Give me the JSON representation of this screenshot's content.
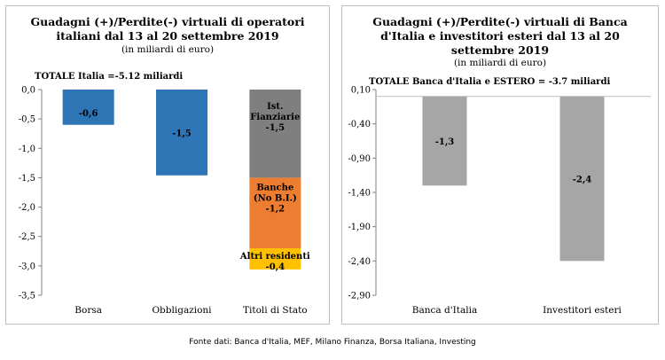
{
  "chart_data": [
    {
      "type": "bar",
      "stacked": true,
      "title": "Guadagni (+)/Perdite(-) virtuali di operatori italiani dal 13 al 20 settembre 2019",
      "title_lines": [
        "Guadagni (+)/Perdite(-) virtuali di operatori",
        "italiani dal 13 al 20 settembre 2019"
      ],
      "subtitle": "(in miliardi di euro)",
      "annotation": "TOTALE Italia =-5.12 miliardi",
      "categories": [
        "Borsa",
        "Obbligazioni",
        "Titoli di Stato"
      ],
      "ylim": [
        -3.5,
        0
      ],
      "yticks": [
        "0,0",
        "-0,5",
        "-1,0",
        "-1,5",
        "-2,0",
        "-2,5",
        "-3,0",
        "-3,5"
      ],
      "grid": false,
      "segments": [
        {
          "category": "Borsa",
          "value": -0.6,
          "label": "-0,6",
          "color": "#2e75b6"
        },
        {
          "category": "Obbligazioni",
          "value": -1.46,
          "label": "-1,5",
          "color": "#2e75b6"
        },
        {
          "category": "Titoli di Stato",
          "value": -1.5,
          "label": "Ist. Fianziarie -1,5",
          "label_lines": [
            "Ist.",
            "Fianziarie",
            "-1,5"
          ],
          "color": "#7f7f7f"
        },
        {
          "category": "Titoli di Stato",
          "value": -1.2,
          "label": "Banche (No B.I.) -1,2",
          "label_lines": [
            "Banche",
            "(No B.I.)",
            "-1,2"
          ],
          "color": "#ed7d31"
        },
        {
          "category": "Titoli di Stato",
          "value": -0.36,
          "label": "Altri residenti -0,4",
          "label_lines": [
            "Altri residenti",
            "-0,4"
          ],
          "color": "#ffc000"
        }
      ]
    },
    {
      "type": "bar",
      "title": "Guadagni (+)/Perdite(-) virtuali di Banca d'Italia e investitori esteri dal 13 al 20 settembre 2019",
      "title_lines": [
        "Guadagni (+)/Perdite(-) virtuali di Banca",
        "d'Italia e investitori esteri dal 13 al 20",
        "settembre 2019"
      ],
      "subtitle": "(in miliardi di euro)",
      "annotation": "TOTALE Banca d'Italia e ESTERO = -3.7 miliardi",
      "categories": [
        "Banca d'Italia",
        "Investitori esteri"
      ],
      "ylim": [
        -2.9,
        0.1
      ],
      "yticks": [
        "0,10",
        "-0,40",
        "-0,90",
        "-1,40",
        "-1,90",
        "-2,40",
        "-2,90"
      ],
      "grid": false,
      "values": [
        -1.3,
        -2.4
      ],
      "value_labels": [
        "-1,3",
        "-2,4"
      ],
      "color": "#a6a6a6"
    }
  ],
  "source": "Fonte dati: Banca d'Italia, MEF, Milano Finanza, Borsa Italiana, Investing"
}
